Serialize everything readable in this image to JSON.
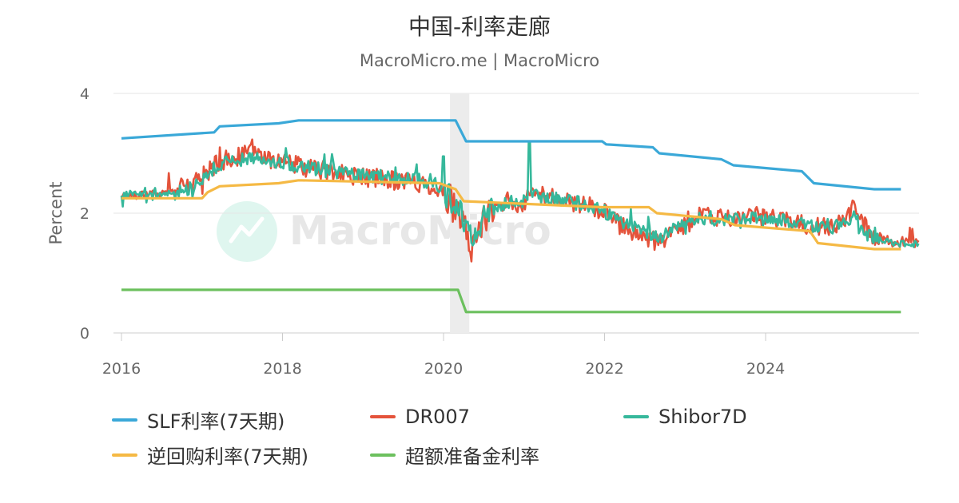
{
  "chart_data": {
    "type": "line",
    "title": "中国-利率走廊",
    "subtitle": "MacroMicro.me | MacroMicro",
    "watermark": "MacroMicro",
    "ylabel": "Percent",
    "xlabel": "",
    "xlim": [
      2016,
      2025.95
    ],
    "ylim": [
      0,
      4
    ],
    "x_ticks": [
      "2016",
      "2018",
      "2020",
      "2022",
      "2024"
    ],
    "y_ticks": [
      "0",
      "2",
      "4"
    ],
    "shaded_period": [
      2020.08,
      2020.32
    ],
    "grid": true,
    "legend_position": "bottom",
    "series": [
      {
        "name": "SLF利率(7天期)",
        "color": "#3aa8d8",
        "type": "step",
        "points": [
          [
            2016.0,
            3.25
          ],
          [
            2017.15,
            3.35
          ],
          [
            2017.22,
            3.45
          ],
          [
            2017.95,
            3.5
          ],
          [
            2018.2,
            3.55
          ],
          [
            2020.15,
            3.55
          ],
          [
            2020.28,
            3.2
          ],
          [
            2021.97,
            3.2
          ],
          [
            2022.02,
            3.15
          ],
          [
            2022.6,
            3.1
          ],
          [
            2022.68,
            3.0
          ],
          [
            2023.45,
            2.9
          ],
          [
            2023.6,
            2.8
          ],
          [
            2024.45,
            2.7
          ],
          [
            2024.6,
            2.5
          ],
          [
            2025.35,
            2.4
          ],
          [
            2025.68,
            2.4
          ]
        ]
      },
      {
        "name": "DR007",
        "color": "#e4533b",
        "type": "noisy",
        "points": [
          [
            2016.0,
            2.3
          ],
          [
            2016.6,
            2.35
          ],
          [
            2016.9,
            2.5
          ],
          [
            2017.2,
            2.85
          ],
          [
            2017.6,
            3.0
          ],
          [
            2018.0,
            2.85
          ],
          [
            2018.5,
            2.7
          ],
          [
            2019.0,
            2.6
          ],
          [
            2019.5,
            2.55
          ],
          [
            2019.9,
            2.45
          ],
          [
            2020.05,
            2.2
          ],
          [
            2020.2,
            1.9
          ],
          [
            2020.35,
            1.45
          ],
          [
            2020.5,
            1.9
          ],
          [
            2020.8,
            2.2
          ],
          [
            2021.0,
            2.15
          ],
          [
            2021.1,
            2.35
          ],
          [
            2021.5,
            2.2
          ],
          [
            2021.9,
            2.1
          ],
          [
            2022.2,
            1.8
          ],
          [
            2022.5,
            1.6
          ],
          [
            2022.7,
            1.5
          ],
          [
            2022.9,
            1.75
          ],
          [
            2023.2,
            1.95
          ],
          [
            2023.6,
            1.9
          ],
          [
            2023.9,
            1.95
          ],
          [
            2024.2,
            1.9
          ],
          [
            2024.5,
            1.8
          ],
          [
            2024.8,
            1.75
          ],
          [
            2025.1,
            2.05
          ],
          [
            2025.3,
            1.65
          ],
          [
            2025.6,
            1.5
          ],
          [
            2025.9,
            1.5
          ]
        ]
      },
      {
        "name": "Shibor7D",
        "color": "#36b89b",
        "type": "noisy",
        "points": [
          [
            2016.0,
            2.32
          ],
          [
            2016.6,
            2.33
          ],
          [
            2016.9,
            2.45
          ],
          [
            2017.2,
            2.8
          ],
          [
            2017.6,
            2.95
          ],
          [
            2018.0,
            2.85
          ],
          [
            2018.5,
            2.72
          ],
          [
            2019.0,
            2.62
          ],
          [
            2019.5,
            2.58
          ],
          [
            2019.9,
            2.5
          ],
          [
            2020.05,
            2.3
          ],
          [
            2020.2,
            2.0
          ],
          [
            2020.35,
            1.6
          ],
          [
            2020.5,
            1.95
          ],
          [
            2020.8,
            2.2
          ],
          [
            2021.0,
            2.2
          ],
          [
            2021.1,
            2.3
          ],
          [
            2021.5,
            2.2
          ],
          [
            2021.9,
            2.12
          ],
          [
            2022.2,
            1.85
          ],
          [
            2022.5,
            1.7
          ],
          [
            2022.7,
            1.6
          ],
          [
            2022.9,
            1.78
          ],
          [
            2023.2,
            1.92
          ],
          [
            2023.6,
            1.9
          ],
          [
            2023.9,
            1.92
          ],
          [
            2024.2,
            1.88
          ],
          [
            2024.5,
            1.8
          ],
          [
            2024.8,
            1.75
          ],
          [
            2025.1,
            1.95
          ],
          [
            2025.3,
            1.6
          ],
          [
            2025.6,
            1.5
          ],
          [
            2025.9,
            1.48
          ]
        ],
        "spikes": [
          [
            2021.07,
            3.2
          ],
          [
            2020.0,
            2.95
          ]
        ]
      },
      {
        "name": "逆回购利率(7天期)",
        "color": "#f5b944",
        "type": "step",
        "points": [
          [
            2016.0,
            2.25
          ],
          [
            2017.0,
            2.25
          ],
          [
            2017.07,
            2.35
          ],
          [
            2017.22,
            2.45
          ],
          [
            2017.95,
            2.5
          ],
          [
            2018.2,
            2.55
          ],
          [
            2019.95,
            2.5
          ],
          [
            2020.15,
            2.4
          ],
          [
            2020.25,
            2.2
          ],
          [
            2021.97,
            2.1
          ],
          [
            2022.55,
            2.1
          ],
          [
            2022.65,
            2.0
          ],
          [
            2023.45,
            1.9
          ],
          [
            2023.62,
            1.8
          ],
          [
            2024.55,
            1.7
          ],
          [
            2024.65,
            1.5
          ],
          [
            2025.35,
            1.4
          ],
          [
            2025.68,
            1.4
          ]
        ]
      },
      {
        "name": "超额准备金利率",
        "color": "#6cc05e",
        "type": "step",
        "points": [
          [
            2016.0,
            0.72
          ],
          [
            2020.18,
            0.72
          ],
          [
            2020.28,
            0.35
          ],
          [
            2025.68,
            0.35
          ]
        ]
      }
    ]
  }
}
